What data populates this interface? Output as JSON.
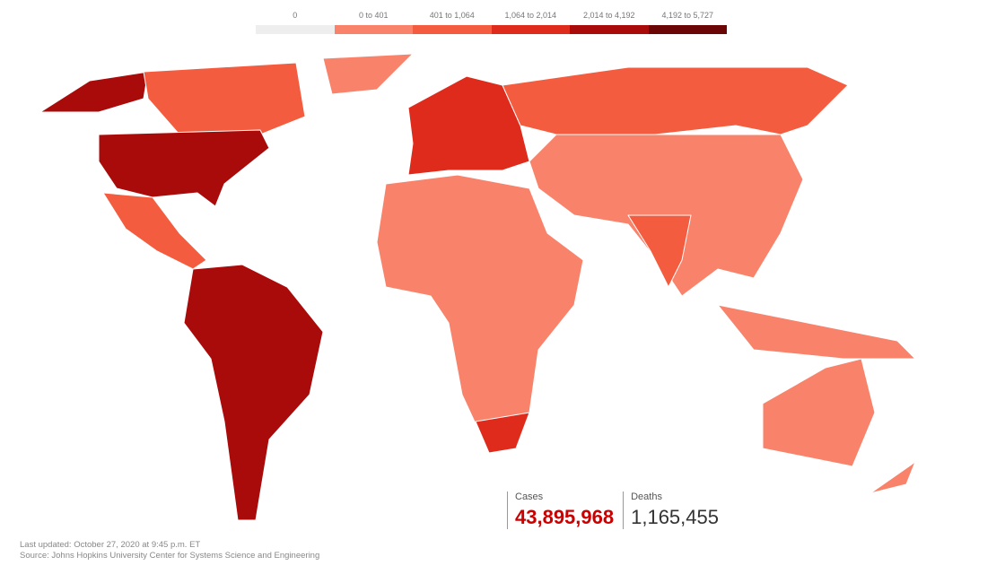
{
  "legend": {
    "items": [
      {
        "label": "0",
        "color": "#eeeeee"
      },
      {
        "label": "0 to 401",
        "color": "#f9826a"
      },
      {
        "label": "401 to 1,064",
        "color": "#f45c3f"
      },
      {
        "label": "1,064 to 2,014",
        "color": "#de2b1c"
      },
      {
        "label": "2,014 to 4,192",
        "color": "#a90b0b"
      },
      {
        "label": "4,192 to 5,727",
        "color": "#6b0606"
      }
    ]
  },
  "stats": {
    "cases": {
      "label": "Cases",
      "value": "43,895,968"
    },
    "deaths": {
      "label": "Deaths",
      "value": "1,165,455"
    }
  },
  "footer": {
    "updated": "Last updated: October 27, 2020 at 9:45 p.m. ET",
    "source": "Source: Johns Hopkins University Center for Systems Science and Engineering"
  }
}
